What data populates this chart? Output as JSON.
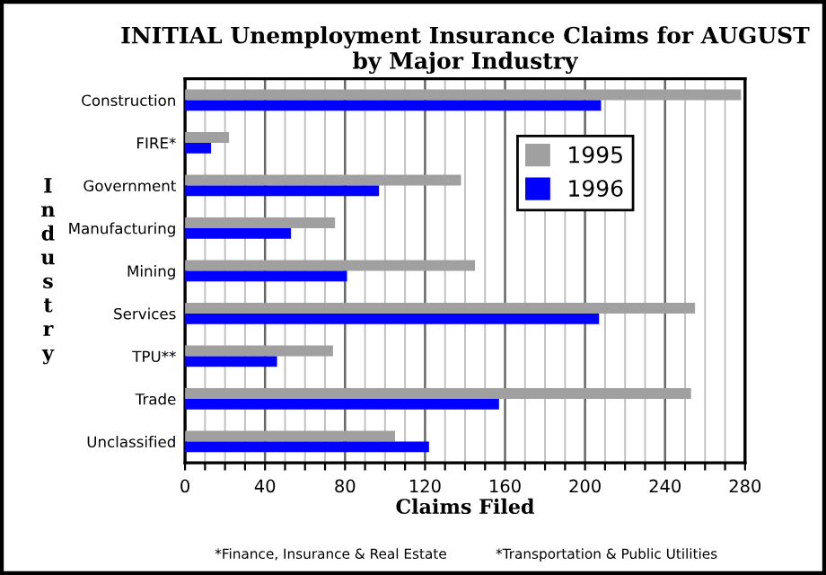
{
  "chart_data": {
    "type": "bar",
    "orientation": "horizontal",
    "title": "INITIAL Unemployment Insurance Claims for AUGUST\nby Major Industry",
    "xlabel": "Claims Filed",
    "ylabel": "Industry",
    "categories": [
      "Construction",
      "FIRE*",
      "Government",
      "Manufacturing",
      "Mining",
      "Services",
      "TPU**",
      "Trade",
      "Unclassified"
    ],
    "series": [
      {
        "name": "1995",
        "color": "#a0a0a0",
        "values": [
          278,
          22,
          138,
          75,
          145,
          255,
          74,
          253,
          105
        ]
      },
      {
        "name": "1996",
        "color": "#0000ff",
        "values": [
          208,
          13,
          97,
          53,
          81,
          207,
          46,
          157,
          122
        ]
      }
    ],
    "xlim": [
      0,
      280
    ],
    "xticks": [
      0,
      {
        "value": 10,
        "label": null
      },
      {
        "value": 20,
        "label": null
      },
      {
        "value": 30,
        "label": null
      },
      40,
      {
        "value": 50,
        "label": null
      },
      {
        "value": 60,
        "label": null
      },
      {
        "value": 70,
        "label": null
      },
      80,
      {
        "value": 90,
        "label": null
      },
      {
        "value": 100,
        "label": null
      },
      {
        "value": 110,
        "label": null
      },
      120,
      {
        "value": 130,
        "label": null
      },
      {
        "value": 140,
        "label": null
      },
      {
        "value": 150,
        "label": null
      },
      160,
      {
        "value": 170,
        "label": null
      },
      {
        "value": 180,
        "label": null
      },
      {
        "value": 190,
        "label": null
      },
      200,
      {
        "value": 210,
        "label": null
      },
      {
        "value": 220,
        "label": null
      },
      {
        "value": 230,
        "label": null
      },
      240,
      {
        "value": 250,
        "label": null
      },
      {
        "value": 260,
        "label": null
      },
      {
        "value": 270,
        "label": null
      },
      280
    ],
    "grid": "x",
    "legend": "top right",
    "annotations": [
      "*Finance, Insurance & Real Estate",
      "*Transportation & Public Utilities"
    ]
  }
}
